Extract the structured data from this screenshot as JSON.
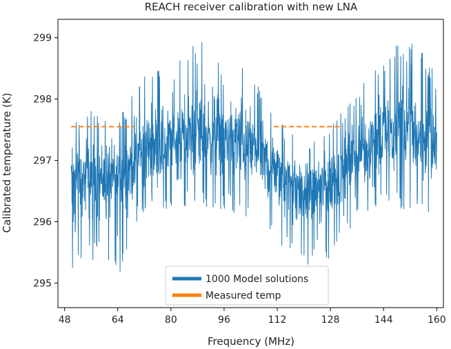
{
  "chart_data": {
    "type": "line",
    "title": "REACH receiver calibration with new LNA",
    "xlabel": "Frequency (MHz)",
    "ylabel": "Calibrated temperature (K)",
    "xlim": [
      46,
      162
    ],
    "ylim": [
      294.6,
      299.3
    ],
    "xticks": [
      48,
      64,
      80,
      96,
      112,
      128,
      144,
      160
    ],
    "yticks": [
      295,
      296,
      297,
      298,
      299
    ],
    "grid": false,
    "legend_position": "lower-center",
    "series": [
      {
        "name": "1000 Model solutions",
        "color": "#1f77b4",
        "x_range": [
          50,
          160
        ],
        "x": [
          50,
          55,
          60,
          65,
          70,
          75,
          80,
          85,
          90,
          95,
          100,
          105,
          110,
          115,
          120,
          125,
          130,
          135,
          140,
          145,
          150,
          155,
          160
        ],
        "center": [
          296.7,
          296.75,
          296.75,
          296.7,
          297.1,
          297.25,
          297.3,
          297.4,
          297.45,
          297.4,
          297.35,
          297.2,
          296.9,
          296.65,
          296.5,
          296.55,
          296.75,
          297.05,
          297.3,
          297.45,
          297.5,
          297.4,
          297.2
        ],
        "upper": [
          297.7,
          297.8,
          297.8,
          297.75,
          298.3,
          298.5,
          298.6,
          298.8,
          299.0,
          298.7,
          298.6,
          298.4,
          297.9,
          297.5,
          297.3,
          297.4,
          297.7,
          298.1,
          298.5,
          298.8,
          299.0,
          298.8,
          298.4
        ],
        "lower": [
          295.0,
          295.4,
          295.3,
          295.1,
          296.0,
          296.1,
          296.1,
          296.2,
          296.2,
          296.2,
          296.1,
          296.0,
          295.8,
          295.5,
          295.3,
          295.3,
          295.5,
          295.9,
          296.1,
          296.2,
          296.2,
          296.2,
          296.1
        ]
      },
      {
        "name": "Measured temp",
        "color": "#ff7f0e",
        "style": "dashed",
        "x": [
          50,
          69,
          111,
          131
        ],
        "y": [
          297.55,
          297.55,
          297.55,
          297.55
        ],
        "segments": [
          [
            50,
            69
          ],
          [
            111,
            131
          ]
        ]
      }
    ]
  }
}
